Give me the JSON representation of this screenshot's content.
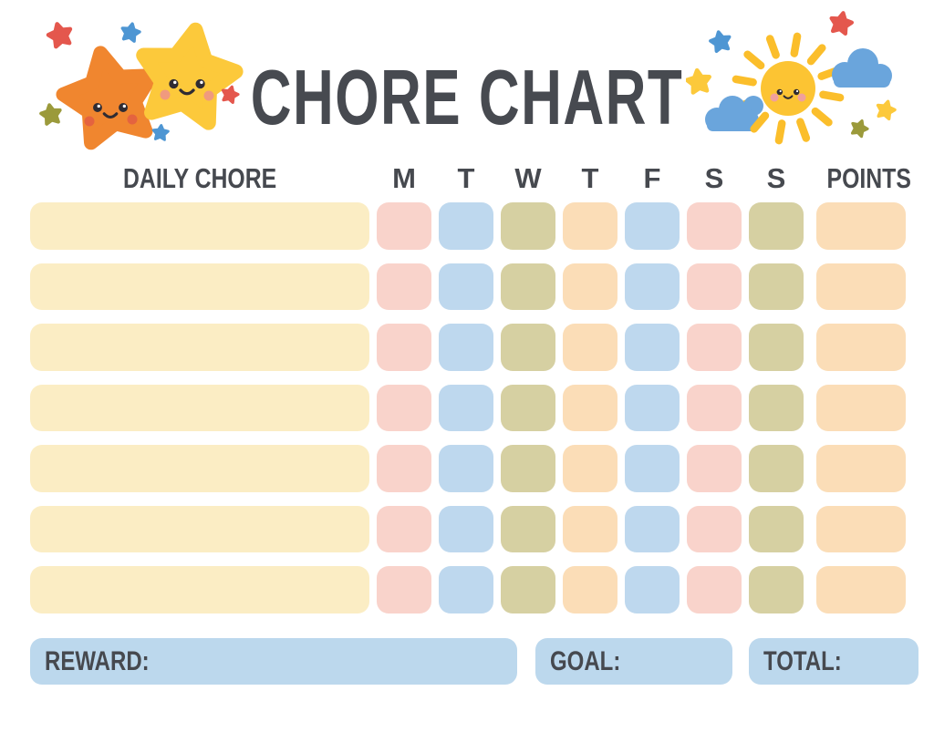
{
  "title": "CHORE CHART",
  "table": {
    "chore_header": "DAILY CHORE",
    "day_headers": [
      "M",
      "T",
      "W",
      "T",
      "F",
      "S",
      "S"
    ],
    "points_header": "POINTS",
    "row_count": 7,
    "day_cell_colors": [
      "pink",
      "blue",
      "olive",
      "peach",
      "blue",
      "pink",
      "olive"
    ],
    "chore_cell_color": "cream",
    "points_cell_color": "peach",
    "cells_empty": true
  },
  "footer": {
    "reward_label": "REWARD:",
    "goal_label": "GOAL:",
    "total_label": "TOTAL:"
  },
  "colors": {
    "cream": "#FBEDC4",
    "pink": "#F9D3CB",
    "blue": "#BED8EE",
    "olive": "#D6D0A2",
    "peach": "#FBDDB7",
    "footer_blue": "#BCD8ED",
    "text": "#46494F",
    "title": "#474A50"
  },
  "decoration_colors": {
    "orange_star": "#F0862F",
    "yellow_star": "#FCC93B",
    "red_star": "#E4574D",
    "blue_star": "#4E96D3",
    "olive_star": "#9B9A3B",
    "sun_body": "#FCC433",
    "sun_rays": "#FBBE2B",
    "cloud_blue": "#6AA5DC",
    "face_dark": "#2F2C33",
    "cheek_orange": "#E4633F",
    "cheek_yellow": "#F09A7E",
    "cheek_sun": "#F0A09C"
  },
  "decorations": {
    "top_left_icons": [
      "orange-star-face-icon",
      "yellow-star-face-icon",
      "red-star-icon",
      "blue-star-icon",
      "olive-star-icon"
    ],
    "top_right_icons": [
      "sun-face-icon",
      "cloud-icon",
      "red-star-icon",
      "blue-star-icon",
      "yellow-star-icon",
      "olive-star-icon"
    ]
  }
}
